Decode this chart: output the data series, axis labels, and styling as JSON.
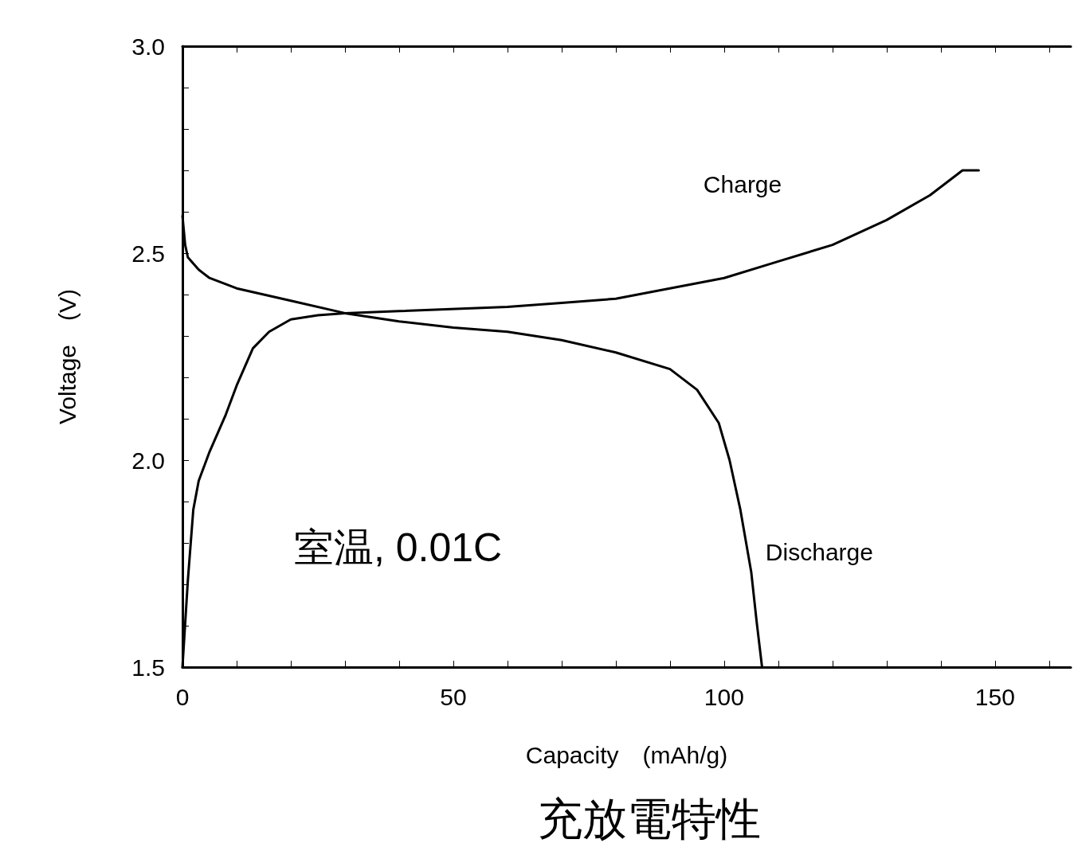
{
  "chart_data": {
    "type": "line",
    "title": "充放電特性",
    "xlabel": "Capacity　(mAh/g)",
    "ylabel": "Voltage　(V)",
    "xlim": [
      0,
      164
    ],
    "ylim": [
      1.5,
      3.0
    ],
    "xticks": [
      0,
      {
        "value": 10,
        "label": null
      },
      {
        "value": 20,
        "label": null
      },
      {
        "value": 30,
        "label": null
      },
      {
        "value": 40,
        "label": null
      },
      50,
      {
        "value": 60,
        "label": null
      },
      {
        "value": 70,
        "label": null
      },
      {
        "value": 80,
        "label": null
      },
      {
        "value": 90,
        "label": null
      },
      100,
      {
        "value": 110,
        "label": null
      },
      {
        "value": 120,
        "label": null
      },
      {
        "value": 130,
        "label": null
      },
      {
        "value": 140,
        "label": null
      },
      150,
      {
        "value": 160,
        "label": null
      }
    ],
    "yticks": [
      {
        "value": 1.5,
        "label": "1.5"
      },
      {
        "value": 1.6,
        "label": null
      },
      {
        "value": 1.7,
        "label": null
      },
      {
        "value": 1.8,
        "label": null
      },
      {
        "value": 1.9,
        "label": null
      },
      {
        "value": 2.0,
        "label": "2.0"
      },
      {
        "value": 2.1,
        "label": null
      },
      {
        "value": 2.2,
        "label": null
      },
      {
        "value": 2.3,
        "label": null
      },
      {
        "value": 2.4,
        "label": null
      },
      {
        "value": 2.5,
        "label": "2.5"
      },
      {
        "value": 2.6,
        "label": null
      },
      {
        "value": 2.7,
        "label": null
      },
      {
        "value": 2.8,
        "label": null
      },
      {
        "value": 2.9,
        "label": null
      },
      {
        "value": 3.0,
        "label": "3.0"
      }
    ],
    "grid": false,
    "marker": "none",
    "line_style": "solid",
    "series": [
      {
        "name": "Charge",
        "color": "#000000",
        "x": [
          0,
          1,
          2,
          3,
          5,
          8,
          10,
          13,
          16,
          20,
          25,
          30,
          40,
          60,
          70,
          80,
          90,
          100,
          110,
          120,
          130,
          138,
          143,
          144,
          147
        ],
        "values": [
          1.5,
          1.71,
          1.88,
          1.95,
          2.02,
          2.11,
          2.18,
          2.27,
          2.31,
          2.34,
          2.35,
          2.355,
          2.36,
          2.37,
          2.38,
          2.39,
          2.415,
          2.44,
          2.48,
          2.52,
          2.58,
          2.64,
          2.69,
          2.7,
          2.7
        ]
      },
      {
        "name": "Discharge",
        "color": "#000000",
        "x": [
          0,
          0.5,
          1,
          3,
          5,
          10,
          20,
          30,
          40,
          50,
          60,
          70,
          80,
          90,
          95,
          99,
          101,
          103,
          105,
          106,
          107
        ],
        "values": [
          2.59,
          2.52,
          2.49,
          2.46,
          2.44,
          2.415,
          2.385,
          2.355,
          2.335,
          2.32,
          2.31,
          2.29,
          2.26,
          2.22,
          2.17,
          2.09,
          2.0,
          1.88,
          1.73,
          1.61,
          1.5
        ]
      }
    ],
    "annotations": [
      "室温, 0.01C"
    ]
  }
}
